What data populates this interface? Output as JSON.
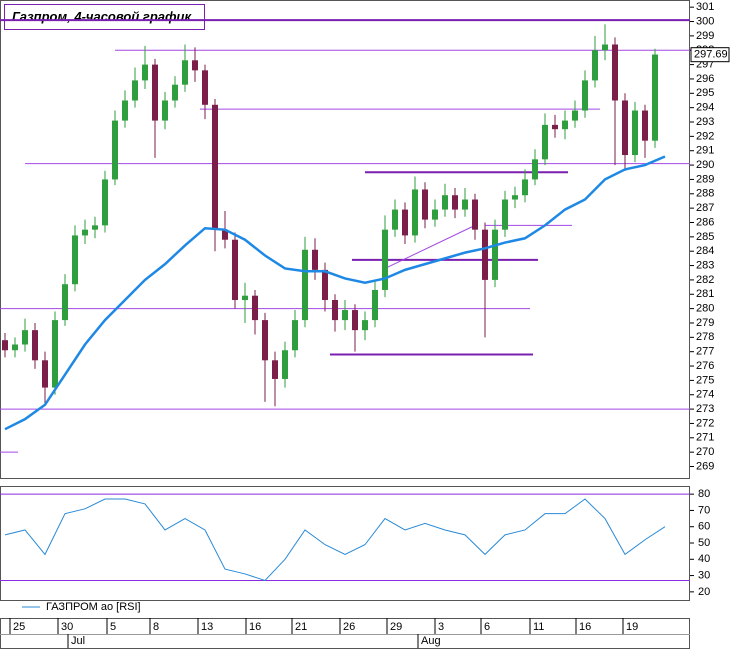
{
  "chart_data": [
    {
      "type": "candlestick",
      "title": "Газпром, 4-часовой график",
      "open": [
        277.8,
        277.1,
        277.5,
        278.5,
        276.4,
        274.5,
        279.2,
        281.7,
        285.1,
        285.5,
        285.8,
        289,
        293.1,
        294.5,
        295.9,
        297,
        293.1,
        294.5,
        295.6,
        297.3,
        296.6,
        294.2,
        285.5,
        284.8,
        280.6,
        280.9,
        279.2,
        276.4,
        275.1,
        277.1,
        279.2,
        284.1,
        282.7,
        280.6,
        279.2,
        279.9,
        278.5,
        279.2,
        281.3,
        285.5,
        286.9,
        285.1,
        288.3,
        286.2,
        286.9,
        287.9,
        286.9,
        287.6,
        285.5,
        282,
        285.5,
        287.6,
        287.9,
        289,
        290.4,
        292.8,
        292.5,
        293.1,
        293.8,
        295.9,
        298,
        298.4,
        294.5,
        290.7,
        293.8,
        291.7
      ],
      "high": [
        278.3,
        278,
        279.3,
        279,
        277,
        279.8,
        282.4,
        285.8,
        286.2,
        286.4,
        289.6,
        293.8,
        295.2,
        296.8,
        298.3,
        297.4,
        295.1,
        296.2,
        298.4,
        298.2,
        297,
        294.6,
        286.8,
        285.3,
        281.8,
        281.3,
        279.7,
        277,
        277.7,
        279.9,
        285,
        284.9,
        283.2,
        281,
        280.6,
        280.3,
        279.8,
        281.9,
        286.5,
        287.6,
        287.4,
        289.2,
        288.8,
        287.6,
        288.7,
        288.4,
        288.4,
        288,
        286,
        286.2,
        288.2,
        288.5,
        289.7,
        291.1,
        293.6,
        293.5,
        293.8,
        294.5,
        296.6,
        299,
        299.8,
        298.9,
        295,
        294.4,
        294.2,
        298.1
      ],
      "low": [
        276.6,
        276.6,
        277,
        275.8,
        273.3,
        274,
        278.8,
        281.2,
        284.5,
        284.9,
        285.3,
        288.6,
        292.6,
        294,
        295.3,
        290.5,
        292.5,
        294,
        295.1,
        295.8,
        293.2,
        284,
        284.2,
        280,
        279,
        278.2,
        273.5,
        273.2,
        274.5,
        276.6,
        278.7,
        282,
        279.8,
        278.4,
        278.5,
        277,
        277.8,
        278.7,
        280.8,
        285,
        284.5,
        284.6,
        285.6,
        285.7,
        286.4,
        286.3,
        286.4,
        284.8,
        278,
        281.5,
        285,
        287,
        287.4,
        288.6,
        290,
        291.9,
        291.8,
        292.6,
        293.3,
        295.4,
        297.3,
        290,
        289.6,
        290.2,
        290.5,
        291.2
      ],
      "close": [
        277.1,
        277.5,
        278.5,
        276.4,
        274.5,
        279.2,
        281.7,
        285.1,
        285.5,
        285.8,
        289,
        293.1,
        294.5,
        295.9,
        297,
        293.1,
        294.5,
        295.6,
        297.3,
        296.6,
        294.2,
        285.5,
        284.8,
        280.6,
        280.9,
        279.2,
        276.4,
        275.1,
        277.1,
        279.2,
        284.1,
        282.7,
        280.6,
        279.2,
        279.9,
        278.5,
        279.2,
        281.3,
        285.5,
        286.9,
        285.1,
        288.3,
        286.2,
        286.9,
        287.9,
        286.9,
        287.6,
        285.5,
        282,
        285.5,
        287.6,
        287.9,
        289,
        290.4,
        292.8,
        292.5,
        293.1,
        293.8,
        295.9,
        298,
        298.4,
        294.5,
        290.7,
        293.8,
        291.7,
        297.7
      ],
      "up_color": "#2f9e3e",
      "down_color": "#7b1f4a",
      "ma": {
        "color": "#1e88e5",
        "x": [
          0,
          2,
          4,
          6,
          8,
          10,
          12,
          14,
          16,
          18,
          20,
          22,
          24,
          26,
          28,
          30,
          32,
          34,
          36,
          38,
          40,
          42,
          44,
          46,
          48,
          50,
          52,
          54,
          56,
          58,
          60,
          62,
          64,
          66
        ],
        "values": [
          271.6,
          272.3,
          273.3,
          275.4,
          277.5,
          279.2,
          280.6,
          282,
          283.1,
          284.4,
          285.6,
          285.5,
          284.8,
          283.7,
          282.8,
          282.6,
          282.6,
          282.1,
          281.8,
          282.1,
          282.7,
          283.1,
          283.5,
          283.9,
          284.2,
          284.6,
          284.9,
          285.8,
          286.9,
          287.6,
          289,
          289.7,
          290,
          290.6
        ]
      },
      "levels": [
        {
          "value": 300.1,
          "from": -0.5,
          "to": 68.5,
          "thick": true
        },
        {
          "value": 298,
          "from": 11,
          "to": 68.5,
          "thick": false
        },
        {
          "value": 293.9,
          "from": 19.5,
          "to": 59.5,
          "thick": false
        },
        {
          "value": 290.1,
          "from": 2,
          "to": 68.5,
          "thick": false
        },
        {
          "value": 289.5,
          "from": 36,
          "to": 56.3,
          "thick": true
        },
        {
          "value": 285.8,
          "from": 48,
          "to": 56.7,
          "thick": false
        },
        {
          "value": 283.4,
          "from": 34.7,
          "to": 53.3,
          "thick": true
        },
        {
          "value": 280,
          "from": -0.5,
          "to": 52.5,
          "thick": false
        },
        {
          "value": 276.8,
          "from": 32.5,
          "to": 52.8,
          "thick": true
        },
        {
          "value": 273,
          "from": -0.5,
          "to": 68.5,
          "thick": false
        },
        {
          "value": 270,
          "from": -0.5,
          "to": 1.3,
          "thick": false
        }
      ],
      "trendline": {
        "x": [
          38,
          47
        ],
        "values": [
          282.8,
          285.8
        ]
      },
      "level_color": "#a347e6",
      "last_price": 297.69,
      "xlim": [
        -0.5,
        68.5
      ],
      "ylim": [
        268.2,
        301.5
      ],
      "yticks": [
        269,
        270,
        271,
        272,
        273,
        274,
        275,
        276,
        277,
        278,
        279,
        280,
        281,
        282,
        283,
        284,
        285,
        286,
        287,
        288,
        289,
        290,
        291,
        292,
        293,
        294,
        295,
        296,
        297,
        298,
        299,
        300,
        301
      ],
      "xticks": [
        {
          "value": 0.5,
          "label": "25"
        },
        {
          "value": 5.3,
          "label": "30"
        },
        {
          "value": 10.2,
          "label": "5"
        },
        {
          "value": 14.5,
          "label": "8"
        },
        {
          "value": 19.3,
          "label": "13"
        },
        {
          "value": 24.1,
          "label": "16"
        },
        {
          "value": 28.7,
          "label": "21"
        },
        {
          "value": 33.5,
          "label": "26"
        },
        {
          "value": 38.2,
          "label": "29"
        },
        {
          "value": 43,
          "label": "3"
        },
        {
          "value": 47.6,
          "label": "6"
        },
        {
          "value": 52.5,
          "label": "11"
        },
        {
          "value": 57.1,
          "label": "16"
        },
        {
          "value": 61.8,
          "label": "19"
        }
      ],
      "month_ticks": [
        {
          "value": 6.3,
          "label": "Jul"
        },
        {
          "value": 41.3,
          "label": "Aug"
        }
      ]
    },
    {
      "type": "line",
      "series": [
        {
          "name": "ГАЗПРОМ ао [RSI]",
          "color": "#2a8ad6",
          "x": [
            0,
            2,
            4,
            6,
            8,
            10,
            12,
            14,
            16,
            18,
            20,
            22,
            24,
            26,
            28,
            30,
            32,
            34,
            36,
            38,
            40,
            42,
            44,
            46,
            48,
            50,
            52,
            54,
            56,
            58,
            60,
            62,
            64,
            66
          ],
          "values": [
            55,
            58,
            43,
            68,
            71,
            77,
            77,
            74,
            58,
            65,
            58,
            34,
            31,
            27,
            40,
            58,
            49,
            43,
            49,
            65,
            58,
            62,
            58,
            55,
            43,
            55,
            58,
            68,
            68,
            77,
            65,
            43,
            52,
            60
          ]
        }
      ],
      "levels": [
        80,
        27
      ],
      "level_color": "#8a2be2",
      "ylim": [
        15,
        85
      ],
      "yticks": [
        20,
        30,
        40,
        50,
        60,
        70,
        80
      ]
    }
  ]
}
